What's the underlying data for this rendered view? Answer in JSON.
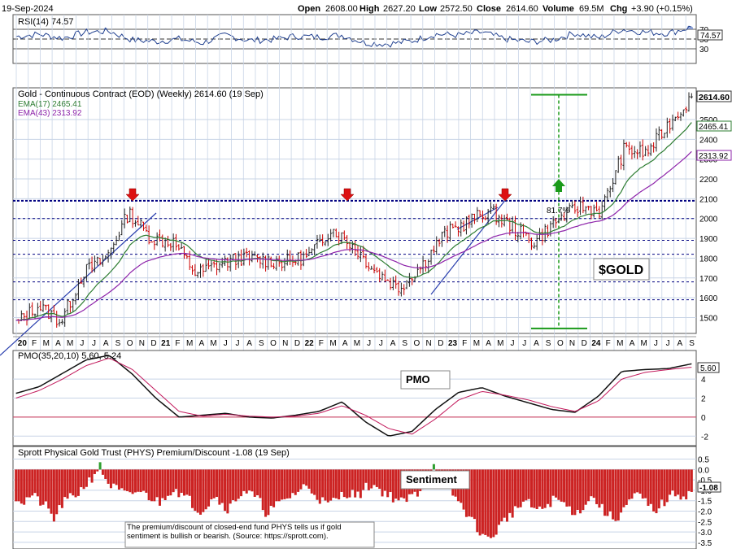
{
  "header": {
    "date": "19-Sep-2024",
    "quote": {
      "open_label": "Open",
      "open": "2608.00",
      "high_label": "High",
      "high": "2627.20",
      "low_label": "Low",
      "low": "2572.50",
      "close_label": "Close",
      "close": "2614.60",
      "volume_label": "Volume",
      "volume": "69.5M",
      "chg_label": "Chg",
      "chg": "+3.90 (+0.15%)"
    }
  },
  "colors": {
    "price_up": "#222222",
    "price_down": "#cc0000",
    "ema17": "#2e7d32",
    "ema43": "#8e24aa",
    "pmo": "#111111",
    "pmo_signal": "#c2185b",
    "rsi": "#1f3f8f",
    "support_dash": "#000080",
    "green_signal": "#1a9a1a",
    "sentiment_neg": "#cc2222",
    "sentiment_pos": "#2e9e2e",
    "grid": "#c8d4e6"
  },
  "chart_data": [
    {
      "type": "line",
      "panel": "rsi",
      "title": "RSI(14) 74.57",
      "y_ticks": [
        "70",
        "50",
        "30"
      ],
      "ylim": [
        0,
        100
      ],
      "last_value_label": "74.57",
      "x": [
        "2019-11",
        "2020-01",
        "2020-03",
        "2020-05",
        "2020-07",
        "2020-09",
        "2020-11",
        "2021-01",
        "2021-03",
        "2021-05",
        "2021-07",
        "2021-09",
        "2021-11",
        "2022-01",
        "2022-03",
        "2022-05",
        "2022-07",
        "2022-09",
        "2022-11",
        "2023-01",
        "2023-03",
        "2023-05",
        "2023-07",
        "2023-09",
        "2023-11",
        "2024-01",
        "2024-03",
        "2024-05",
        "2024-07",
        "2024-09"
      ],
      "values": [
        55,
        60,
        52,
        64,
        66,
        48,
        45,
        50,
        42,
        58,
        47,
        49,
        56,
        54,
        58,
        42,
        40,
        46,
        60,
        58,
        64,
        50,
        44,
        48,
        62,
        52,
        70,
        64,
        62,
        74.57
      ],
      "shade_above": 70
    },
    {
      "type": "candlestick",
      "panel": "price",
      "title": "Gold - Continuous Contract (EOD) (Weekly) 2614.60 (19 Sep)",
      "x": [
        "2019-11",
        "2020-01",
        "2020-03",
        "2020-05",
        "2020-07",
        "2020-08",
        "2020-10",
        "2020-12",
        "2021-02",
        "2021-04",
        "2021-06",
        "2021-08",
        "2021-10",
        "2021-12",
        "2022-03",
        "2022-05",
        "2022-07",
        "2022-09",
        "2022-11",
        "2023-01",
        "2023-03",
        "2023-05",
        "2023-07",
        "2023-09",
        "2023-11",
        "2023-12",
        "2024-02",
        "2024-04",
        "2024-06",
        "2024-08",
        "2024-09"
      ],
      "close": [
        1470,
        1560,
        1480,
        1730,
        1800,
        2030,
        1900,
        1880,
        1720,
        1770,
        1800,
        1790,
        1780,
        1810,
        1950,
        1860,
        1730,
        1650,
        1760,
        1920,
        1980,
        2040,
        1960,
        1880,
        1990,
        2060,
        2040,
        2350,
        2330,
        2480,
        2614.6
      ],
      "ylim": [
        1420,
        2660
      ],
      "y_ticks": [
        "1500",
        "1600",
        "1700",
        "1800",
        "1900",
        "2000",
        "2100",
        "2200",
        "2300",
        "2400",
        "2500"
      ],
      "x_tick_labels": [
        "20",
        "F",
        "M",
        "A",
        "M",
        "J",
        "J",
        "A",
        "S",
        "O",
        "N",
        "D",
        "21",
        "F",
        "M",
        "A",
        "M",
        "J",
        "J",
        "A",
        "S",
        "O",
        "N",
        "D",
        "22",
        "F",
        "M",
        "A",
        "M",
        "J",
        "J",
        "A",
        "S",
        "O",
        "N",
        "D",
        "23",
        "F",
        "M",
        "A",
        "M",
        "J",
        "J",
        "A",
        "S",
        "O",
        "N",
        "D",
        "24",
        "F",
        "M",
        "A",
        "M",
        "J",
        "J",
        "A",
        "S"
      ],
      "series": [
        {
          "name": "EMA(17) 2465.41",
          "last": "2465.41"
        },
        {
          "name": "EMA(43) 2313.92",
          "last": "2313.92"
        }
      ],
      "price_label": "2614.60",
      "resistance_level": 2090,
      "arrows_at": [
        "2020-08",
        "2022-03",
        "2023-05"
      ],
      "measured_move_label": "81.7%",
      "measured_move_range": [
        1445,
        2625
      ],
      "symbol_label": "$GOLD"
    },
    {
      "type": "line",
      "panel": "pmo",
      "title": "PMO(35,20,10) 5.60, 5.24",
      "box_label": "PMO",
      "y_ticks": [
        "4",
        "2",
        "0",
        "-2"
      ],
      "ylim": [
        -3,
        7
      ],
      "last_value_label": "5.60",
      "series": [
        {
          "name": "PMO",
          "values": [
            2.5,
            3.2,
            4.6,
            6.0,
            6.5,
            4.5,
            2.0,
            0.0,
            0.2,
            0.4,
            0.0,
            -0.1,
            0.2,
            0.6,
            1.6,
            -0.5,
            -2.0,
            -1.5,
            0.8,
            2.6,
            3.1,
            2.2,
            1.5,
            0.8,
            0.5,
            2.2,
            4.8,
            5.0,
            5.1,
            5.6
          ]
        },
        {
          "name": "Signal",
          "values": [
            2.0,
            2.8,
            4.0,
            5.4,
            6.2,
            5.0,
            2.8,
            0.6,
            0.1,
            0.3,
            0.1,
            0.0,
            0.1,
            0.4,
            1.2,
            0.2,
            -1.2,
            -1.8,
            -0.2,
            1.8,
            2.7,
            2.3,
            1.8,
            1.1,
            0.6,
            1.7,
            4.0,
            4.7,
            5.0,
            5.24
          ]
        }
      ]
    },
    {
      "type": "bar",
      "panel": "sentiment",
      "title": "Sprott Physical Gold Trust (PHYS) Premium/Discount -1.08 (19 Sep)",
      "box_label": "Sentiment",
      "y_ticks": [
        "0.5",
        "0.0",
        "-0.5",
        "-1.0",
        "-1.5",
        "-2.0",
        "-2.5",
        "-3.0",
        "-3.5"
      ],
      "ylim": [
        -3.7,
        0.6
      ],
      "last_value_label": "-1.08",
      "values": [
        -1.3,
        -1.6,
        -1.2,
        -1.5,
        -1.8,
        -2.4,
        -1.7,
        -1.4,
        -1.2,
        -0.8,
        -0.4,
        0.2,
        -0.6,
        -0.9,
        -1.1,
        -1.3,
        -1.0,
        -1.2,
        -1.4,
        -1.6,
        -1.1,
        -0.9,
        -1.3,
        -1.5,
        -2.0,
        -1.8,
        -1.2,
        -1.6,
        -1.9,
        -1.4,
        -1.0,
        -1.2,
        -1.5,
        -2.1,
        -1.8,
        -1.6,
        -1.3,
        -1.1,
        -0.8,
        -1.0,
        -1.4,
        -1.7,
        -1.5,
        -1.2,
        -1.1,
        -1.3,
        -0.9,
        -0.7,
        -1.0,
        -1.2,
        -1.4,
        -1.6,
        -1.3,
        -1.1,
        -0.6,
        0.2,
        -0.5,
        -0.9,
        -1.4,
        -1.9,
        -2.4,
        -2.9,
        -3.4,
        -3.1,
        -2.6,
        -2.2,
        -1.9,
        -1.5,
        -1.8,
        -2.0,
        -1.7,
        -1.4,
        -1.6,
        -1.9,
        -2.1,
        -1.6,
        -1.3,
        -1.8,
        -2.2,
        -2.4,
        -1.9,
        -1.5,
        -1.2,
        -1.6,
        -2.0,
        -1.7,
        -1.4,
        -1.1,
        -1.3,
        -1.08
      ],
      "note": "The premium/discount of closed-end fund PHYS tells us if gold sentiment is bullish or bearish. (Source: https://sprott.com)."
    }
  ]
}
